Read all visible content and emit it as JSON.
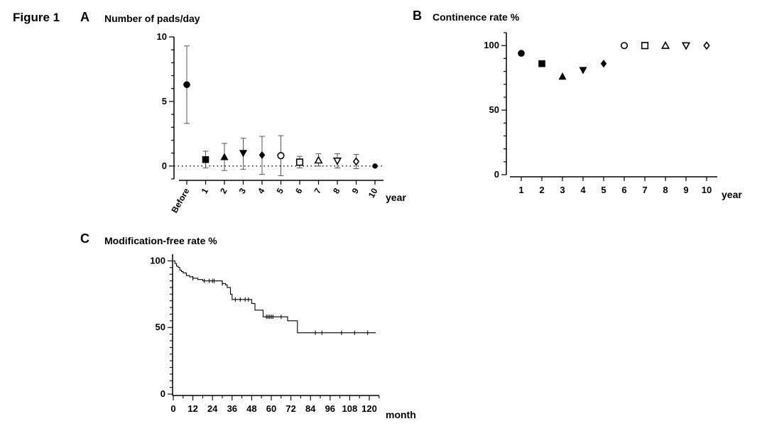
{
  "figure": {
    "title": "Figure 1",
    "panel_a": {
      "letter": "A",
      "title": "Number of pads/day"
    },
    "panel_b": {
      "letter": "B",
      "title": "Continence rate %"
    },
    "panel_c": {
      "letter": "C",
      "title": "Modification-free rate %"
    }
  },
  "chart_data": [
    {
      "id": "A",
      "type": "scatter",
      "title": "Number of pads/day",
      "xlabel": "year",
      "ylabel": "",
      "categories": [
        "Before",
        "1",
        "2",
        "3",
        "4",
        "5",
        "6",
        "7",
        "8",
        "9",
        "10"
      ],
      "mean": [
        6.3,
        0.5,
        0.7,
        1.0,
        0.85,
        0.8,
        0.3,
        0.45,
        0.4,
        0.35,
        0.0
      ],
      "error_low": [
        3.3,
        -0.15,
        -0.35,
        -0.25,
        -0.65,
        -0.75,
        -0.15,
        0.0,
        -0.15,
        -0.2,
        0.0
      ],
      "error_high": [
        9.3,
        1.15,
        1.75,
        2.15,
        2.3,
        2.35,
        0.75,
        0.95,
        0.95,
        0.9,
        0.0
      ],
      "markers": [
        "filled-circle",
        "filled-square",
        "filled-triangle-up",
        "filled-triangle-down",
        "filled-diamond",
        "open-circle",
        "open-square",
        "open-triangle-up",
        "open-triangle-down",
        "open-diamond",
        "filled-circle"
      ],
      "ylim": [
        -1,
        10
      ],
      "yticks": [
        "0",
        "5",
        "10"
      ],
      "reference_line": 0,
      "grid": false
    },
    {
      "id": "B",
      "type": "scatter",
      "title": "Continence rate %",
      "xlabel": "year",
      "ylabel": "",
      "categories": [
        "1",
        "2",
        "3",
        "4",
        "5",
        "6",
        "7",
        "8",
        "9",
        "10"
      ],
      "values": [
        94,
        86,
        76,
        81,
        86,
        100,
        100,
        100,
        100,
        100
      ],
      "markers": [
        "filled-circle",
        "filled-square",
        "filled-triangle-up",
        "filled-triangle-down",
        "filled-diamond",
        "open-circle",
        "open-square",
        "open-triangle-up",
        "open-triangle-down",
        "open-diamond"
      ],
      "ylim": [
        0,
        110
      ],
      "yticks": [
        "0",
        "50",
        "100"
      ],
      "grid": false
    },
    {
      "id": "C",
      "type": "line",
      "subtype": "step",
      "title": "Modification-free rate %",
      "xlabel": "month",
      "ylabel": "",
      "xlim": [
        0,
        126
      ],
      "ylim": [
        0,
        105
      ],
      "xticks": [
        "0",
        "12",
        "24",
        "36",
        "48",
        "60",
        "72",
        "84",
        "96",
        "108",
        "120"
      ],
      "yticks": [
        "0",
        "50",
        "100"
      ],
      "step_x": [
        0,
        1,
        2,
        3,
        4,
        5,
        6,
        8,
        10,
        12,
        15,
        18,
        20,
        30,
        32,
        33,
        35,
        36,
        46,
        48,
        50,
        55,
        68,
        70,
        76,
        124
      ],
      "step_y": [
        100,
        98,
        96,
        95,
        93,
        92,
        91,
        89,
        88,
        87,
        86,
        85,
        85,
        83,
        82,
        80,
        75,
        71,
        71,
        68,
        63,
        58,
        58,
        55,
        46,
        46
      ],
      "censored_x": [
        12,
        19,
        22,
        24,
        25,
        30,
        38,
        41,
        44,
        46,
        57,
        58,
        59,
        60,
        61,
        66,
        87,
        91,
        103,
        111,
        119
      ],
      "grid": false
    }
  ]
}
